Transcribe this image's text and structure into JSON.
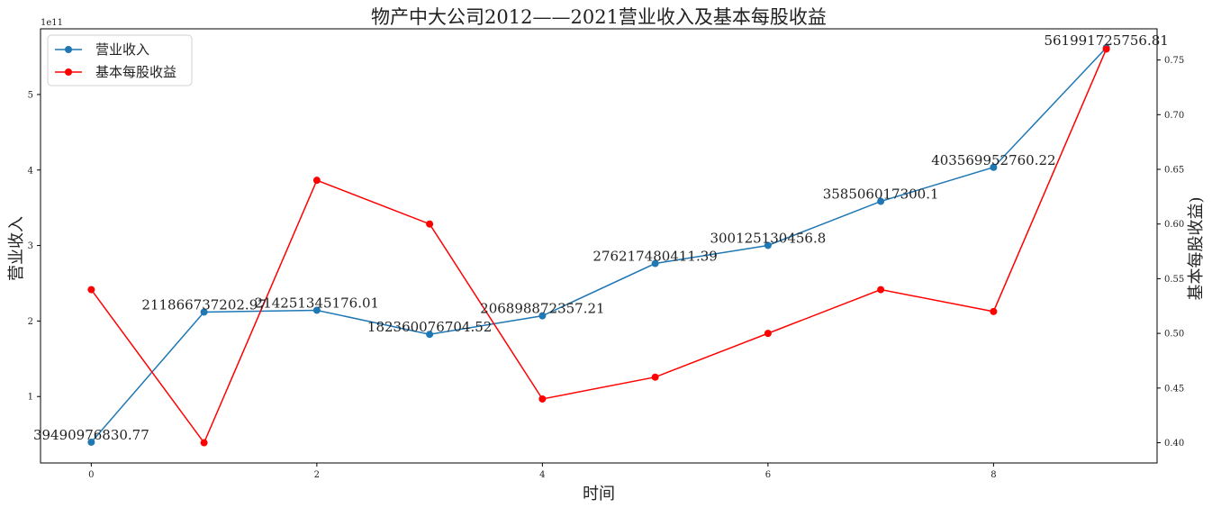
{
  "chart_data": {
    "type": "line",
    "title": "物产中大公司2012——2021营业收入及基本每股收益",
    "xlabel": "时间",
    "ylabel_left": "营业收入",
    "ylabel_right": "基本每股收益)",
    "left_axis_exponent": "1e11",
    "x": [
      0,
      1,
      2,
      3,
      4,
      5,
      6,
      7,
      8,
      9
    ],
    "x_ticks": [
      "0",
      "2",
      "4",
      "6",
      "8"
    ],
    "y_left_ticks": [
      "1",
      "2",
      "3",
      "4",
      "5"
    ],
    "y_right_ticks": [
      "0.40",
      "0.45",
      "0.50",
      "0.55",
      "0.60",
      "0.65",
      "0.70",
      "0.75"
    ],
    "xlim": [
      -0.45,
      9.45
    ],
    "ylim_left": [
      0.12,
      5.87
    ],
    "ylim_right": [
      0.3815,
      0.7785
    ],
    "legend_position": "upper left",
    "series": [
      {
        "name": "营业收入",
        "axis": "left",
        "color": "#1f77b4",
        "values": [
          39490976830.77,
          211866737202.97,
          214251345176.01,
          182360076704.52,
          206898872357.21,
          276217480411.39,
          300125130456.8,
          358506017300.1,
          403569952760.22,
          561991725756.81
        ],
        "labels": [
          "39490976830.77",
          "211866737202.97",
          "214251345176.01",
          "182360076704.52",
          "206898872357.21",
          "276217480411.39",
          "300125130456.8",
          "358506017300.1",
          "403569952760.22",
          "561991725756.81"
        ]
      },
      {
        "name": "基本每股收益",
        "axis": "right",
        "color": "#ff0000",
        "values": [
          0.54,
          0.4,
          0.64,
          0.6,
          0.44,
          0.46,
          0.5,
          0.54,
          0.52,
          0.76
        ]
      }
    ]
  }
}
